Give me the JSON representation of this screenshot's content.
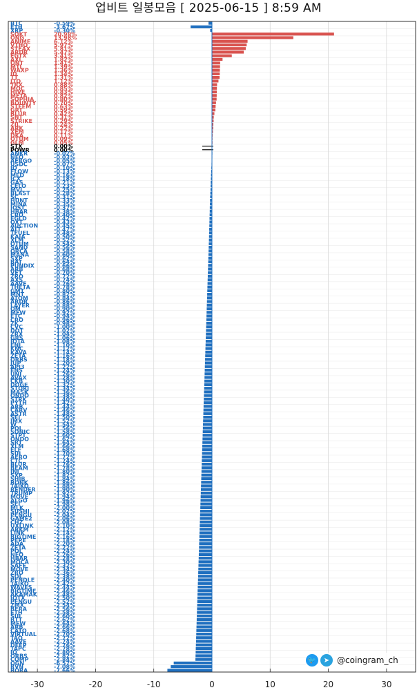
{
  "title": "업비트 일봉모음 [ 2025-06-15 ]  8:59 AM",
  "watermark": {
    "handle": "@coingram_ch",
    "icons": [
      "twitter-icon",
      "telegram-icon"
    ]
  },
  "colors": {
    "up": "#d9534f",
    "down": "#1f6fbf",
    "flat": "#000000",
    "grid": "#d9d9d9"
  },
  "chart_data": {
    "type": "bar",
    "orientation": "horizontal",
    "title": "업비트 일봉모음 [ 2025-06-15 ]  8:59 AM",
    "xlim": [
      -35,
      35
    ],
    "xticks": [
      -30,
      -20,
      -10,
      0,
      10,
      20,
      30
    ],
    "grid": true,
    "rows": [
      {
        "name": "BTC",
        "pct": "-0.59%",
        "value": -0.59
      },
      {
        "name": "ETH",
        "pct": "-3.67%",
        "value": -3.67
      },
      {
        "name": "XRP",
        "pct": "-0.30%",
        "value": -0.3
      },
      {
        "name": "SOKT",
        "pct": "20.98%",
        "value": 20.98
      },
      {
        "name": "ONG",
        "pct": "13.98%",
        "value": 13.98
      },
      {
        "name": "ANIME",
        "pct": "6.12%",
        "value": 6.12
      },
      {
        "name": "VTHO",
        "pct": "5.97%",
        "value": 5.97
      },
      {
        "name": "STEAX",
        "pct": "5.81%",
        "value": 5.81
      },
      {
        "name": "ARDR",
        "pct": "5.47%",
        "value": 5.47
      },
      {
        "name": "EGTX",
        "pct": "3.41%",
        "value": 3.41
      },
      {
        "name": "AXL",
        "pct": "1.82%",
        "value": 1.82
      },
      {
        "name": "ONT",
        "pct": "1.41%",
        "value": 1.41
      },
      {
        "name": "MTL",
        "pct": "1.39%",
        "value": 1.39
      },
      {
        "name": "WAXP",
        "pct": "1.36%",
        "value": 1.36
      },
      {
        "name": "ID",
        "pct": "1.34%",
        "value": 1.34
      },
      {
        "name": "TT",
        "pct": "1.31%",
        "value": 1.31
      },
      {
        "name": "JTO",
        "pct": "1.12%",
        "value": 1.12
      },
      {
        "name": "TRX",
        "pct": "0.88%",
        "value": 0.88
      },
      {
        "name": "MOC",
        "pct": "0.85%",
        "value": 0.85
      },
      {
        "name": "HIVE",
        "pct": "0.83%",
        "value": 0.83
      },
      {
        "name": "META",
        "pct": "0.82%",
        "value": 0.82
      },
      {
        "name": "SOPHIA",
        "pct": "0.80%",
        "value": 0.8
      },
      {
        "name": "BOUNTY",
        "pct": "0.70%",
        "value": 0.7
      },
      {
        "name": "STEEM",
        "pct": "0.63%",
        "value": 0.63
      },
      {
        "name": "GRT",
        "pct": "0.59%",
        "value": 0.59
      },
      {
        "name": "BLUR",
        "pct": "0.42%",
        "value": 0.42
      },
      {
        "name": "SNT",
        "pct": "0.31%",
        "value": 0.31
      },
      {
        "name": "STRIKE",
        "pct": "0.29%",
        "value": 0.29
      },
      {
        "name": "ZIL",
        "pct": "0.24%",
        "value": 0.24
      },
      {
        "name": "ARK",
        "pct": "0.22%",
        "value": 0.22
      },
      {
        "name": "XEM",
        "pct": "0.17%",
        "value": 0.17
      },
      {
        "name": "DKA",
        "pct": "0.11%",
        "value": 0.11
      },
      {
        "name": "QTUM",
        "pct": "0.09%",
        "value": 0.09
      },
      {
        "name": "GLM",
        "pct": "0.05%",
        "value": 0.05
      },
      {
        "name": "STX",
        "pct": "0.00%",
        "value": 0.0
      },
      {
        "name": "POWR",
        "pct": "0.00%",
        "value": 0.0
      },
      {
        "name": "ANKR",
        "pct": "-0.02%",
        "value": -0.02
      },
      {
        "name": "NEO",
        "pct": "-0.03%",
        "value": -0.03
      },
      {
        "name": "AERGO",
        "pct": "-0.05%",
        "value": -0.05
      },
      {
        "name": "USDC",
        "pct": "-0.07%",
        "value": -0.07
      },
      {
        "name": "IQ",
        "pct": "-0.10%",
        "value": -0.1
      },
      {
        "name": "FLOW",
        "pct": "-0.13%",
        "value": -0.13
      },
      {
        "name": "MED",
        "pct": "-0.16%",
        "value": -0.16
      },
      {
        "name": "ICX",
        "pct": "-0.18%",
        "value": -0.18
      },
      {
        "name": "GAS",
        "pct": "-0.21%",
        "value": -0.21
      },
      {
        "name": "CELO",
        "pct": "-0.23%",
        "value": -0.23
      },
      {
        "name": "MVL",
        "pct": "-0.25%",
        "value": -0.25
      },
      {
        "name": "BLAST",
        "pct": "-0.28%",
        "value": -0.28
      },
      {
        "name": "SC",
        "pct": "-0.31%",
        "value": -0.31
      },
      {
        "name": "HUNT",
        "pct": "-0.33%",
        "value": -0.33
      },
      {
        "name": "MINA",
        "pct": "-0.35%",
        "value": -0.35
      },
      {
        "name": "IOST",
        "pct": "-0.37%",
        "value": -0.37
      },
      {
        "name": "HBAR",
        "pct": "-0.38%",
        "value": -0.38
      },
      {
        "name": "CRO",
        "pct": "-0.40%",
        "value": -0.4
      },
      {
        "name": "EGLD",
        "pct": "-0.42%",
        "value": -0.42
      },
      {
        "name": "OXT",
        "pct": "-0.43%",
        "value": -0.43
      },
      {
        "name": "AUCTION",
        "pct": "-0.45%",
        "value": -0.45
      },
      {
        "name": "ALT",
        "pct": "-0.47%",
        "value": -0.47
      },
      {
        "name": "TFUEL",
        "pct": "-0.48%",
        "value": -0.48
      },
      {
        "name": "KAIA",
        "pct": "-0.50%",
        "value": -0.5
      },
      {
        "name": "XLM",
        "pct": "-0.52%",
        "value": -0.52
      },
      {
        "name": "QTUM",
        "pct": "-0.54%",
        "value": -0.54
      },
      {
        "name": "SAND",
        "pct": "-0.56%",
        "value": -0.56
      },
      {
        "name": "ORCA",
        "pct": "-0.58%",
        "value": -0.58
      },
      {
        "name": "MANA",
        "pct": "-0.60%",
        "value": -0.6
      },
      {
        "name": "SXP",
        "pct": "-0.62%",
        "value": -0.62
      },
      {
        "name": "BAT",
        "pct": "-0.64%",
        "value": -0.64
      },
      {
        "name": "PUNDIX",
        "pct": "-0.66%",
        "value": -0.66
      },
      {
        "name": "ARB",
        "pct": "-0.68%",
        "value": -0.68
      },
      {
        "name": "VET",
        "pct": "-0.70%",
        "value": -0.7
      },
      {
        "name": "ZRO",
        "pct": "-0.72%",
        "value": -0.72
      },
      {
        "name": "AXS",
        "pct": "-0.74%",
        "value": -0.74
      },
      {
        "name": "AAVE",
        "pct": "-0.76%",
        "value": -0.76
      },
      {
        "name": "THETA",
        "pct": "-0.78%",
        "value": -0.78
      },
      {
        "name": "GMT",
        "pct": "-0.80%",
        "value": -0.8
      },
      {
        "name": "MNT",
        "pct": "-0.82%",
        "value": -0.82
      },
      {
        "name": "ATOM",
        "pct": "-0.84%",
        "value": -0.84
      },
      {
        "name": "ARDR",
        "pct": "-0.86%",
        "value": -0.86
      },
      {
        "name": "LAYER",
        "pct": "-0.88%",
        "value": -0.88
      },
      {
        "name": "OM",
        "pct": "-0.90%",
        "value": -0.9
      },
      {
        "name": "MEW",
        "pct": "-0.92%",
        "value": -0.92
      },
      {
        "name": "ETC",
        "pct": "-0.94%",
        "value": -0.94
      },
      {
        "name": "CRO",
        "pct": "-0.96%",
        "value": -0.96
      },
      {
        "name": "ZK",
        "pct": "-0.98%",
        "value": -0.98
      },
      {
        "name": "CVC",
        "pct": "-1.00%",
        "value": -1.0
      },
      {
        "name": "DOT",
        "pct": "-1.02%",
        "value": -1.02
      },
      {
        "name": "ZRX",
        "pct": "-1.04%",
        "value": -1.04
      },
      {
        "name": "GRS",
        "pct": "-1.06%",
        "value": -1.06
      },
      {
        "name": "IOTA",
        "pct": "-1.08%",
        "value": -1.08
      },
      {
        "name": "ENJ",
        "pct": "-1.10%",
        "value": -1.1
      },
      {
        "name": "KNC",
        "pct": "-1.12%",
        "value": -1.12
      },
      {
        "name": "KAVA",
        "pct": "-1.14%",
        "value": -1.14
      },
      {
        "name": "ZETA",
        "pct": "-1.16%",
        "value": -1.16
      },
      {
        "name": "ORBS",
        "pct": "-1.18%",
        "value": -1.18
      },
      {
        "name": "JUP",
        "pct": "-1.20%",
        "value": -1.2
      },
      {
        "name": "API3",
        "pct": "-1.22%",
        "value": -1.22
      },
      {
        "name": "ENS",
        "pct": "-1.24%",
        "value": -1.24
      },
      {
        "name": "UNI",
        "pct": "-1.26%",
        "value": -1.26
      },
      {
        "name": "AVAX",
        "pct": "-1.28%",
        "value": -1.28
      },
      {
        "name": "CKB",
        "pct": "-1.30%",
        "value": -1.3
      },
      {
        "name": "DOGE",
        "pct": "-1.32%",
        "value": -1.32
      },
      {
        "name": "STORJ",
        "pct": "-1.34%",
        "value": -1.34
      },
      {
        "name": "MASK",
        "pct": "-1.36%",
        "value": -1.36
      },
      {
        "name": "ONDO",
        "pct": "-1.38%",
        "value": -1.38
      },
      {
        "name": "STRK",
        "pct": "-1.40%",
        "value": -1.4
      },
      {
        "name": "PYTH",
        "pct": "-1.42%",
        "value": -1.42
      },
      {
        "name": "ARB",
        "pct": "-1.44%",
        "value": -1.44
      },
      {
        "name": "CARV",
        "pct": "-1.46%",
        "value": -1.46
      },
      {
        "name": "ASTR",
        "pct": "-1.48%",
        "value": -1.48
      },
      {
        "name": "SEI",
        "pct": "-1.50%",
        "value": -1.5
      },
      {
        "name": "IMX",
        "pct": "-1.52%",
        "value": -1.52
      },
      {
        "name": "W",
        "pct": "-1.54%",
        "value": -1.54
      },
      {
        "name": "POL",
        "pct": "-1.56%",
        "value": -1.56
      },
      {
        "name": "SONIC",
        "pct": "-1.58%",
        "value": -1.58
      },
      {
        "name": "STPT",
        "pct": "-1.60%",
        "value": -1.6
      },
      {
        "name": "ONDO",
        "pct": "-1.62%",
        "value": -1.62
      },
      {
        "name": "SRT",
        "pct": "-1.64%",
        "value": -1.64
      },
      {
        "name": "XLM",
        "pct": "-1.66%",
        "value": -1.66
      },
      {
        "name": "ELF",
        "pct": "-1.68%",
        "value": -1.68
      },
      {
        "name": "SUI",
        "pct": "-1.70%",
        "value": -1.7
      },
      {
        "name": "AERO",
        "pct": "-1.72%",
        "value": -1.72
      },
      {
        "name": "CTC",
        "pct": "-1.74%",
        "value": -1.74
      },
      {
        "name": "BLUR",
        "pct": "-1.76%",
        "value": -1.76
      },
      {
        "name": "BEAM",
        "pct": "-1.78%",
        "value": -1.78
      },
      {
        "name": "INJ",
        "pct": "-1.80%",
        "value": -1.8
      },
      {
        "name": "SXP",
        "pct": "-1.82%",
        "value": -1.82
      },
      {
        "name": "SHIB",
        "pct": "-1.84%",
        "value": -1.84
      },
      {
        "name": "BONK",
        "pct": "-1.86%",
        "value": -1.86
      },
      {
        "name": "TAIKO",
        "pct": "-1.88%",
        "value": -1.88
      },
      {
        "name": "RENDER",
        "pct": "-1.90%",
        "value": -1.9
      },
      {
        "name": "TRUMP",
        "pct": "-1.92%",
        "value": -1.92
      },
      {
        "name": "MOVE",
        "pct": "-1.94%",
        "value": -1.94
      },
      {
        "name": "ALGO",
        "pct": "-1.96%",
        "value": -1.96
      },
      {
        "name": "SEI",
        "pct": "-1.98%",
        "value": -1.98
      },
      {
        "name": "MLK",
        "pct": "-2.00%",
        "value": -2.0
      },
      {
        "name": "SUSHI",
        "pct": "-2.02%",
        "value": -2.02
      },
      {
        "name": "PENGU",
        "pct": "-2.04%",
        "value": -2.04
      },
      {
        "name": "GAME2",
        "pct": "-2.06%",
        "value": -2.06
      },
      {
        "name": "CHZ",
        "pct": "-2.08%",
        "value": -2.08
      },
      {
        "name": "UXLINK",
        "pct": "-2.10%",
        "value": -2.1
      },
      {
        "name": "ARKM",
        "pct": "-2.12%",
        "value": -2.12
      },
      {
        "name": "LINK",
        "pct": "-2.14%",
        "value": -2.14
      },
      {
        "name": "BIGTIME",
        "pct": "-2.16%",
        "value": -2.16
      },
      {
        "name": "PEPE",
        "pct": "-2.18%",
        "value": -2.18
      },
      {
        "name": "ADA",
        "pct": "-2.20%",
        "value": -2.2
      },
      {
        "name": "ZETA",
        "pct": "-2.22%",
        "value": -2.22
      },
      {
        "name": "POL",
        "pct": "-2.24%",
        "value": -2.24
      },
      {
        "name": "NEO",
        "pct": "-2.26%",
        "value": -2.26
      },
      {
        "name": "HBAR",
        "pct": "-2.28%",
        "value": -2.28
      },
      {
        "name": "MOCA",
        "pct": "-2.30%",
        "value": -2.3
      },
      {
        "name": "SAFE",
        "pct": "-2.32%",
        "value": -2.32
      },
      {
        "name": "MOVE",
        "pct": "-2.34%",
        "value": -2.34
      },
      {
        "name": "ZRO",
        "pct": "-2.36%",
        "value": -2.36
      },
      {
        "name": "SOL",
        "pct": "-2.38%",
        "value": -2.38
      },
      {
        "name": "PENDLE",
        "pct": "-2.40%",
        "value": -2.4
      },
      {
        "name": "TAIKO",
        "pct": "-2.42%",
        "value": -2.42
      },
      {
        "name": "WAVES",
        "pct": "-2.44%",
        "value": -2.44
      },
      {
        "name": "BIGTIME",
        "pct": "-2.46%",
        "value": -2.46
      },
      {
        "name": "AKAMAK",
        "pct": "-2.48%",
        "value": -2.48
      },
      {
        "name": "IOTX",
        "pct": "-2.50%",
        "value": -2.5
      },
      {
        "name": "PENGU",
        "pct": "-2.52%",
        "value": -2.52
      },
      {
        "name": "ZMX",
        "pct": "-2.54%",
        "value": -2.54
      },
      {
        "name": "BERA",
        "pct": "-2.56%",
        "value": -2.56
      },
      {
        "name": "ETH",
        "pct": "-2.58%",
        "value": -2.58
      },
      {
        "name": "SUI",
        "pct": "-2.60%",
        "value": -2.6
      },
      {
        "name": "BTT",
        "pct": "-2.62%",
        "value": -2.62
      },
      {
        "name": "MEW",
        "pct": "-2.64%",
        "value": -2.64
      },
      {
        "name": "ARB",
        "pct": "-2.66%",
        "value": -2.66
      },
      {
        "name": "CATO",
        "pct": "-2.68%",
        "value": -2.68
      },
      {
        "name": "VIRTUAL",
        "pct": "-2.70%",
        "value": -2.7
      },
      {
        "name": "TAO",
        "pct": "-2.72%",
        "value": -2.72
      },
      {
        "name": "AAVE",
        "pct": "-2.74%",
        "value": -2.74
      },
      {
        "name": "DEEP",
        "pct": "-2.76%",
        "value": -2.76
      },
      {
        "name": "TAPC",
        "pct": "-2.78%",
        "value": -2.78
      },
      {
        "name": "IQ",
        "pct": "-2.80%",
        "value": -2.8
      },
      {
        "name": "ORBS",
        "pct": "-2.82%",
        "value": -2.82
      },
      {
        "name": "COMP",
        "pct": "-2.84%",
        "value": -2.84
      },
      {
        "name": "OGN",
        "pct": "-6.57%",
        "value": -6.57
      },
      {
        "name": "RVN",
        "pct": "-7.08%",
        "value": -7.08
      },
      {
        "name": "BORA",
        "pct": "-7.66%",
        "value": -7.66
      }
    ]
  }
}
